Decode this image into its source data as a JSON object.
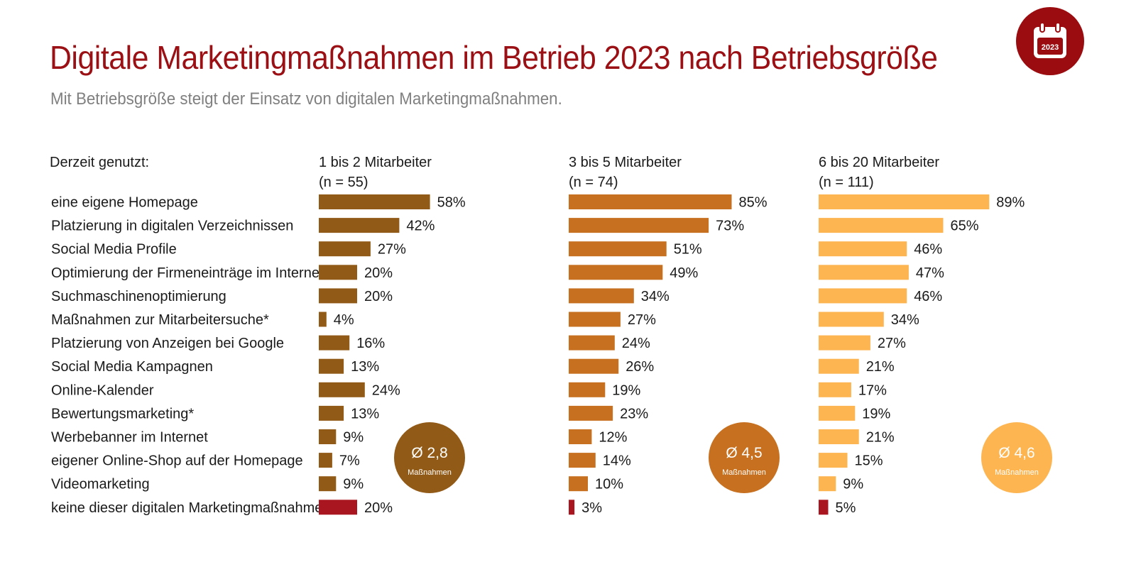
{
  "title": "Digitale Marketingmaßnahmen im Betrieb 2023 nach Betriebsgröße",
  "subtitle": "Mit Betriebsgröße steigt der Einsatz von digitalen Marketingmaßnahmen.",
  "badge": {
    "icon": "calendar-icon",
    "year": "2023",
    "color": "#9a0c0f"
  },
  "chart_data": {
    "type": "bar",
    "orientation": "horizontal",
    "category_header": "Derzeit genutzt:",
    "categories": [
      "eine eigene Homepage",
      "Platzierung in digitalen Verzeichnissen",
      "Social Media Profile",
      "Optimierung der Firmeneinträge im Internet",
      "Suchmaschinenoptimierung",
      "Maßnahmen zur Mitarbeitersuche*",
      "Platzierung von Anzeigen bei Google",
      "Social Media Kampagnen",
      "Online-Kalender",
      "Bewertungsmarketing*",
      "Werbebanner im Internet",
      "eigener Online-Shop auf der Homepage",
      "Videomarketing",
      "keine dieser digitalen Marketingmaßnahmen"
    ],
    "unit": "%",
    "xlim": [
      0,
      100
    ],
    "grid": false,
    "highlight_last_color": "#aa1620",
    "series": [
      {
        "name": "1 bis 2 Mitarbeiter",
        "n_label": "(n = 55)",
        "color": "#925a17",
        "values": [
          58,
          42,
          27,
          20,
          20,
          4,
          16,
          13,
          24,
          13,
          9,
          7,
          9,
          20
        ],
        "average": {
          "value": "Ø 2,8",
          "label": "Maßnahmen"
        }
      },
      {
        "name": "3 bis 5 Mitarbeiter",
        "n_label": "(n = 74)",
        "color": "#c67020",
        "values": [
          85,
          73,
          51,
          49,
          34,
          27,
          24,
          26,
          19,
          23,
          12,
          14,
          10,
          3
        ],
        "average": {
          "value": "Ø 4,5",
          "label": "Maßnahmen"
        }
      },
      {
        "name": "6 bis 20 Mitarbeiter",
        "n_label": "(n = 111)",
        "color": "#fdb552",
        "values": [
          89,
          65,
          46,
          47,
          46,
          34,
          27,
          21,
          17,
          19,
          21,
          15,
          9,
          5
        ],
        "average": {
          "value": "Ø 4,6",
          "label": "Maßnahmen"
        }
      }
    ]
  }
}
